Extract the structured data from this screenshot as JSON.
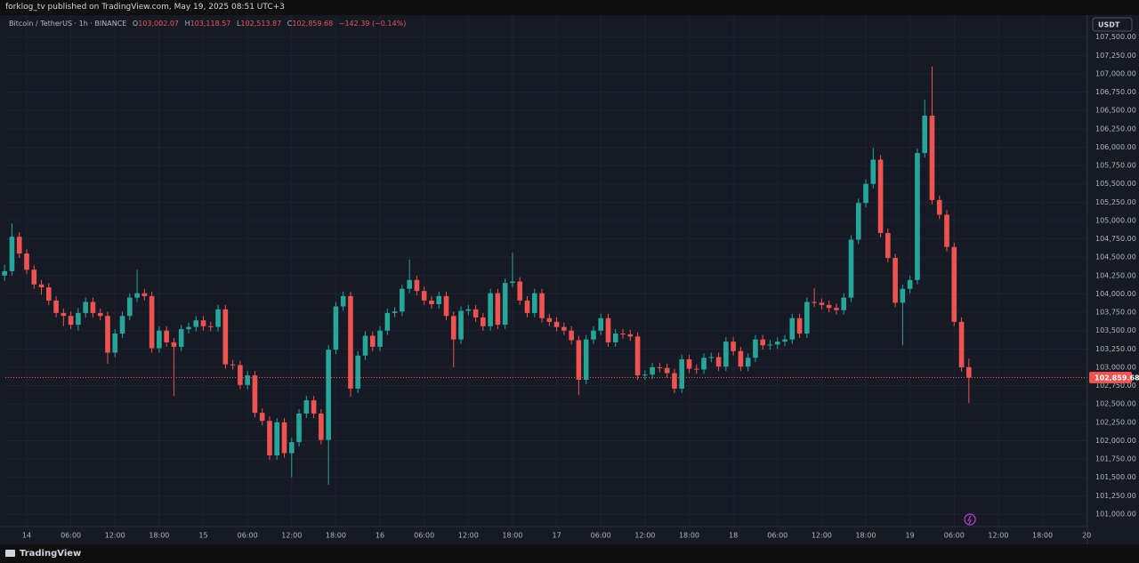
{
  "header": "forklog_tv published on TradingView.com, May 19, 2025 08:51 UTC+3",
  "footer": "TradingView",
  "chart_data": {
    "type": "candlestick",
    "title": "Bitcoin / TetherUS · 1h · BINANCE",
    "ohlc_legend": [
      {
        "prefix": "O",
        "value": "103,002.07"
      },
      {
        "prefix": "H",
        "value": "103,118.57"
      },
      {
        "prefix": "L",
        "value": "102,513.87"
      },
      {
        "prefix": "C",
        "value": "102,859.68"
      }
    ],
    "change_label": "−142.39 (−0.14%)",
    "currency": "USDT",
    "last_price_label": "102,859.68",
    "up_color": "#26a69a",
    "down_color": "#ef5350",
    "grid": true,
    "x": [
      -3,
      -2,
      -1,
      0,
      1,
      2,
      3,
      4,
      5,
      6,
      7,
      8,
      9,
      10,
      11,
      12,
      13,
      14,
      15,
      16,
      17,
      18,
      19,
      20,
      21,
      22,
      23,
      24,
      25,
      26,
      27,
      28,
      29,
      30,
      31,
      32,
      33,
      34,
      35,
      36,
      37,
      38,
      39,
      40,
      41,
      42,
      43,
      44,
      45,
      46,
      47,
      48,
      49,
      50,
      51,
      52,
      53,
      54,
      55,
      56,
      57,
      58,
      59,
      60,
      61,
      62,
      63,
      64,
      65,
      66,
      67,
      68,
      69,
      70,
      71,
      72,
      73,
      74,
      75,
      76,
      77,
      78,
      79,
      80,
      81,
      82,
      83,
      84,
      85,
      86,
      87,
      88,
      89,
      90,
      91,
      92,
      93,
      94,
      95,
      96,
      97,
      98,
      99,
      100,
      101,
      102,
      103,
      104,
      105,
      106,
      107,
      108,
      109,
      110,
      111,
      112,
      113,
      114,
      115,
      116,
      117,
      118,
      119,
      120,
      121,
      122,
      123,
      124,
      125,
      126,
      127,
      128
    ],
    "open": [
      104250,
      104310,
      104780,
      104550,
      104330,
      104130,
      104090,
      103910,
      103740,
      103700,
      103580,
      103740,
      103890,
      103740,
      103700,
      103200,
      103460,
      103700,
      103950,
      104010,
      103970,
      103260,
      103500,
      103340,
      103280,
      103520,
      103550,
      103640,
      103560,
      103550,
      103790,
      103040,
      103030,
      102760,
      102890,
      102380,
      102270,
      101800,
      102250,
      101830,
      101980,
      102370,
      102550,
      102370,
      102010,
      103240,
      103830,
      103970,
      102710,
      103160,
      103430,
      103280,
      103500,
      103740,
      103760,
      104070,
      104190,
      104040,
      103910,
      103860,
      103970,
      103700,
      103380,
      103770,
      103790,
      103680,
      103560,
      104010,
      103580,
      104150,
      104170,
      103910,
      103740,
      104010,
      103670,
      103620,
      103550,
      103500,
      103370,
      102830,
      103380,
      103500,
      103670,
      103340,
      103460,
      103450,
      103420,
      102890,
      102900,
      103000,
      102990,
      102920,
      102710,
      103110,
      102980,
      102970,
      103130,
      103140,
      103010,
      103350,
      103220,
      103010,
      103130,
      103380,
      103300,
      103310,
      103350,
      103380,
      103670,
      103460,
      103890,
      103880,
      103850,
      103810,
      103780,
      103950,
      104740,
      105240,
      105500,
      105830,
      104830,
      104490,
      103880,
      104070,
      104190,
      105920,
      106430,
      105280,
      105080,
      104640,
      103620,
      103002.07
    ],
    "high": [
      104400,
      104960,
      104840,
      104610,
      104390,
      104190,
      104150,
      103970,
      103800,
      103760,
      103810,
      103950,
      103950,
      103800,
      103760,
      103520,
      103760,
      104010,
      104330,
      104070,
      104030,
      103560,
      103560,
      103400,
      103580,
      103610,
      103700,
      103700,
      103620,
      103850,
      103850,
      103100,
      103090,
      102950,
      102950,
      102440,
      102330,
      102310,
      102310,
      102040,
      102430,
      102610,
      102610,
      102430,
      103300,
      103890,
      104030,
      104030,
      103220,
      103490,
      103490,
      103560,
      103800,
      103820,
      104130,
      104470,
      104250,
      104100,
      103970,
      104030,
      104030,
      103760,
      103830,
      103850,
      103850,
      103740,
      104070,
      104070,
      104210,
      104560,
      104230,
      103970,
      104070,
      104070,
      103730,
      103680,
      103610,
      103560,
      103430,
      103440,
      103560,
      103730,
      103730,
      103520,
      103520,
      103510,
      103480,
      102960,
      103060,
      103060,
      103050,
      102980,
      103170,
      103170,
      103040,
      103190,
      103200,
      103200,
      103410,
      103410,
      103280,
      103190,
      103440,
      103440,
      103370,
      103410,
      103440,
      103730,
      103730,
      103950,
      104080,
      103940,
      103910,
      103870,
      104010,
      104800,
      105300,
      105560,
      105990,
      105890,
      104890,
      104550,
      104130,
      104250,
      105980,
      106650,
      107100,
      105340,
      105140,
      104700,
      103680,
      103118.57
    ],
    "low": [
      104180,
      104250,
      104490,
      104270,
      104070,
      103990,
      103850,
      103680,
      103560,
      103520,
      103500,
      103680,
      103680,
      103640,
      103050,
      103140,
      103400,
      103640,
      103890,
      103910,
      103200,
      103200,
      103280,
      102610,
      103220,
      103460,
      103490,
      103500,
      103490,
      103490,
      102980,
      102970,
      102700,
      102700,
      102320,
      102210,
      101740,
      101740,
      101770,
      101500,
      101920,
      102310,
      102310,
      101950,
      101400,
      103180,
      103770,
      102600,
      102650,
      103100,
      103220,
      103220,
      103440,
      103680,
      103700,
      104010,
      103980,
      103850,
      103800,
      103800,
      103640,
      103000,
      103320,
      103710,
      103620,
      103500,
      103500,
      103520,
      103520,
      104090,
      103850,
      103680,
      103680,
      103610,
      103560,
      103490,
      103440,
      103310,
      102620,
      102770,
      103320,
      103440,
      103280,
      103280,
      103390,
      103360,
      102830,
      102830,
      102840,
      102930,
      102860,
      102650,
      102650,
      102920,
      102910,
      102910,
      103070,
      102950,
      102950,
      103160,
      102950,
      102950,
      103070,
      103240,
      103240,
      103250,
      103290,
      103320,
      103400,
      103400,
      103820,
      103790,
      103750,
      103720,
      103720,
      103890,
      104680,
      105180,
      105440,
      104770,
      104430,
      103820,
      103300,
      104010,
      104130,
      105860,
      105220,
      105020,
      104580,
      103560,
      102940,
      102513.87
    ],
    "close": [
      104310,
      104780,
      104550,
      104330,
      104130,
      104090,
      103910,
      103740,
      103700,
      103580,
      103740,
      103890,
      103740,
      103700,
      103200,
      103460,
      103700,
      103950,
      104010,
      103970,
      103260,
      103500,
      103340,
      103280,
      103520,
      103550,
      103640,
      103560,
      103550,
      103790,
      103040,
      103030,
      102760,
      102890,
      102380,
      102270,
      101800,
      102250,
      101830,
      101980,
      102370,
      102550,
      102370,
      102010,
      103240,
      103830,
      103970,
      102710,
      103160,
      103430,
      103280,
      103500,
      103740,
      103760,
      104070,
      104190,
      104040,
      103910,
      103860,
      103970,
      103700,
      103380,
      103770,
      103790,
      103680,
      103560,
      104010,
      103580,
      104150,
      104170,
      103910,
      103740,
      104010,
      103670,
      103620,
      103550,
      103500,
      103370,
      102830,
      103380,
      103500,
      103670,
      103340,
      103460,
      103450,
      103420,
      102890,
      102900,
      103000,
      102990,
      102920,
      102710,
      103110,
      102980,
      102970,
      103130,
      103140,
      103010,
      103350,
      103220,
      103010,
      103130,
      103380,
      103300,
      103310,
      103350,
      103380,
      103670,
      103460,
      103890,
      103880,
      103850,
      103810,
      103780,
      103950,
      104740,
      105240,
      105500,
      105830,
      104830,
      104490,
      103880,
      104070,
      104190,
      105920,
      106430,
      105280,
      105080,
      104640,
      103620,
      103000,
      102859.68
    ],
    "xlim": [
      -2.9,
      144.1
    ],
    "xticks": [
      {
        "value": 0,
        "label": "14"
      },
      {
        "value": 6,
        "label": "06:00"
      },
      {
        "value": 12,
        "label": "12:00"
      },
      {
        "value": 18,
        "label": "18:00"
      },
      {
        "value": 24,
        "label": "15"
      },
      {
        "value": 30,
        "label": "06:00"
      },
      {
        "value": 36,
        "label": "12:00"
      },
      {
        "value": 42,
        "label": "18:00"
      },
      {
        "value": 48,
        "label": "16"
      },
      {
        "value": 54,
        "label": "06:00"
      },
      {
        "value": 60,
        "label": "12:00"
      },
      {
        "value": 66,
        "label": "18:00"
      },
      {
        "value": 72,
        "label": "17"
      },
      {
        "value": 78,
        "label": "06:00"
      },
      {
        "value": 84,
        "label": "12:00"
      },
      {
        "value": 90,
        "label": "18:00"
      },
      {
        "value": 96,
        "label": "18"
      },
      {
        "value": 102,
        "label": "06:00"
      },
      {
        "value": 108,
        "label": "12:00"
      },
      {
        "value": 114,
        "label": "18:00"
      },
      {
        "value": 120,
        "label": "19"
      },
      {
        "value": 126,
        "label": "06:00"
      },
      {
        "value": 132,
        "label": "12:00"
      },
      {
        "value": 138,
        "label": "18:00"
      },
      {
        "value": 144,
        "label": "20"
      }
    ],
    "ylim": [
      100830,
      107800
    ],
    "yticks": [
      {
        "value": 101000,
        "label": "101,000.00"
      },
      {
        "value": 101250,
        "label": "101,250.00"
      },
      {
        "value": 101500,
        "label": "101,500.00"
      },
      {
        "value": 101750,
        "label": "101,750.00"
      },
      {
        "value": 102000,
        "label": "102,000.00"
      },
      {
        "value": 102250,
        "label": "102,250.00"
      },
      {
        "value": 102500,
        "label": "102,500.00"
      },
      {
        "value": 102750,
        "label": "102,750.00"
      },
      {
        "value": 103000,
        "label": "103,000.00"
      },
      {
        "value": 103250,
        "label": "103,250.00"
      },
      {
        "value": 103500,
        "label": "103,500.00"
      },
      {
        "value": 103750,
        "label": "103,750.00"
      },
      {
        "value": 104000,
        "label": "104,000.00"
      },
      {
        "value": 104250,
        "label": "104,250.00"
      },
      {
        "value": 104500,
        "label": "104,500.00"
      },
      {
        "value": 104750,
        "label": "104,750.00"
      },
      {
        "value": 105000,
        "label": "105,000.00"
      },
      {
        "value": 105250,
        "label": "105,250.00"
      },
      {
        "value": 105500,
        "label": "105,500.00"
      },
      {
        "value": 105750,
        "label": "105,750.00"
      },
      {
        "value": 106000,
        "label": "106,000.00"
      },
      {
        "value": 106250,
        "label": "106,250.00"
      },
      {
        "value": 106500,
        "label": "106,500.00"
      },
      {
        "value": 106750,
        "label": "106,750.00"
      },
      {
        "value": 107000,
        "label": "107,000.00"
      },
      {
        "value": 107250,
        "label": "107,250.00"
      },
      {
        "value": 107500,
        "label": "107,500.00"
      }
    ]
  }
}
